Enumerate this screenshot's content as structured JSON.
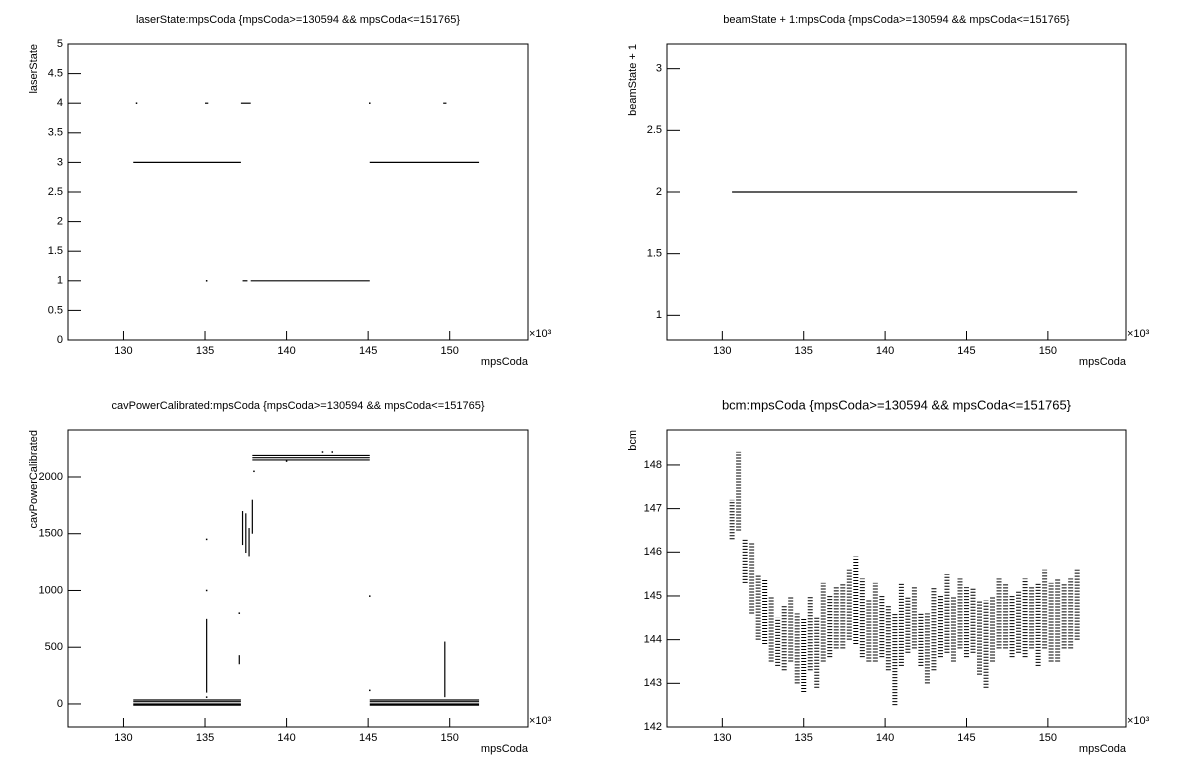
{
  "chart_data": [
    {
      "type": "line",
      "title": "laserState:mpsCoda {mpsCoda>=130594 && mpsCoda<=151765}",
      "x_label": "mpsCoda",
      "y_label": "laserState",
      "x_exponent": "×10³",
      "color": "#000000",
      "xlim": [
        126.6,
        154.8
      ],
      "xticks": [
        130,
        135,
        140,
        145,
        150
      ],
      "ylim": [
        0,
        5
      ],
      "yticks": [
        0,
        0.5,
        1,
        1.5,
        2,
        2.5,
        3,
        3.5,
        4,
        4.5,
        5
      ],
      "x": [
        130.6,
        137.2,
        null,
        145.1,
        151.8,
        null,
        137.8,
        145.1,
        null,
        137.2,
        137.8,
        null,
        135.0,
        135.2,
        null,
        130.8,
        null,
        145.1,
        null,
        149.6,
        149.8,
        null,
        135.1,
        null,
        137.3,
        137.6
      ],
      "y": [
        3,
        3,
        null,
        3,
        3,
        null,
        1,
        1,
        null,
        4,
        4,
        null,
        4,
        4,
        null,
        4,
        null,
        4,
        null,
        4,
        4,
        null,
        1,
        null,
        1,
        1
      ]
    },
    {
      "type": "line",
      "title": "beamState + 1:mpsCoda {mpsCoda>=130594 && mpsCoda<=151765}",
      "x_label": "mpsCoda",
      "y_label": "beamState + 1",
      "x_exponent": "×10³",
      "color": "#000000",
      "xlim": [
        126.6,
        154.8
      ],
      "xticks": [
        130,
        135,
        140,
        145,
        150
      ],
      "ylim": [
        0.8,
        3.2
      ],
      "yticks": [
        1,
        1.5,
        2,
        2.5,
        3
      ],
      "x": [
        130.6,
        151.8
      ],
      "y": [
        2,
        2
      ]
    },
    {
      "type": "line",
      "title": "cavPowerCalibrated:mpsCoda {mpsCoda>=130594 && mpsCoda<=151765}",
      "x_label": "mpsCoda",
      "y_label": "cavPowerCalibrated",
      "x_exponent": "×10³",
      "color": "#000000",
      "xlim": [
        126.6,
        154.8
      ],
      "xticks": [
        130,
        135,
        140,
        145,
        150
      ],
      "ylim": [
        -203,
        2414
      ],
      "yticks": [
        0,
        500,
        1000,
        1500,
        2000
      ],
      "x": [
        130.6,
        137.2,
        null,
        130.6,
        137.2,
        null,
        130.6,
        137.2,
        null,
        130.6,
        137.2,
        null,
        145.1,
        151.8,
        null,
        145.1,
        151.8,
        null,
        145.1,
        151.8,
        null,
        145.1,
        151.8,
        null,
        137.9,
        145.1,
        null,
        137.9,
        145.1,
        null,
        137.9,
        145.1,
        null,
        135.1,
        135.1,
        null,
        135.1,
        null,
        135.1,
        null,
        135.1,
        null,
        137.1,
        null,
        137.1,
        137.1,
        null,
        137.3,
        137.3,
        null,
        137.5,
        137.5,
        null,
        137.7,
        137.7,
        null,
        137.9,
        137.9,
        null,
        138.0,
        null,
        145.1,
        null,
        145.1,
        null,
        149.7,
        149.7,
        null,
        140.0,
        null,
        142.2,
        null,
        142.8
      ],
      "y": [
        35,
        35,
        null,
        20,
        20,
        null,
        0,
        0,
        null,
        -10,
        -10,
        null,
        35,
        35,
        null,
        20,
        20,
        null,
        0,
        0,
        null,
        -10,
        -10,
        null,
        2190,
        2190,
        null,
        2170,
        2170,
        null,
        2150,
        2150,
        null,
        100,
        750,
        null,
        1000,
        null,
        1450,
        null,
        60,
        null,
        800,
        null,
        350,
        430,
        null,
        1400,
        1700,
        null,
        1330,
        1680,
        null,
        1300,
        1550,
        null,
        1500,
        1800,
        null,
        2050,
        null,
        950,
        null,
        120,
        null,
        60,
        550,
        null,
        2140,
        null,
        2220,
        null,
        2220
      ]
    },
    {
      "type": "range",
      "title": "bcm:mpsCoda {mpsCoda>=130594 && mpsCoda<=151765}",
      "x_label": "mpsCoda",
      "y_label": "bcm",
      "x_exponent": "×10³",
      "color": "#000000",
      "xlim": [
        126.6,
        154.8
      ],
      "xticks": [
        130,
        135,
        140,
        145,
        150
      ],
      "ylim": [
        142,
        148.8
      ],
      "yticks": [
        142,
        143,
        144,
        145,
        146,
        147,
        148
      ],
      "x": [
        130.6,
        131.0,
        131.4,
        131.8,
        132.2,
        132.6,
        133.0,
        133.4,
        133.8,
        134.2,
        134.6,
        135.0,
        135.4,
        135.8,
        136.2,
        136.6,
        137.0,
        137.4,
        137.8,
        138.2,
        138.6,
        139.0,
        139.4,
        139.8,
        140.2,
        140.6,
        141.0,
        141.4,
        141.8,
        142.2,
        142.6,
        143.0,
        143.4,
        143.8,
        144.2,
        144.6,
        145.0,
        145.4,
        145.8,
        146.2,
        146.6,
        147.0,
        147.4,
        147.8,
        148.2,
        148.6,
        149.0,
        149.4,
        149.8,
        150.2,
        150.6,
        151.0,
        151.4,
        151.8
      ],
      "low": [
        146.3,
        146.5,
        145.3,
        144.6,
        144.0,
        143.9,
        143.5,
        143.4,
        143.3,
        143.5,
        143.0,
        142.8,
        143.3,
        142.9,
        143.5,
        143.6,
        143.8,
        143.8,
        144.0,
        143.9,
        143.6,
        143.5,
        143.5,
        143.6,
        143.3,
        142.5,
        143.4,
        143.7,
        143.8,
        143.4,
        143.0,
        143.3,
        143.6,
        143.7,
        143.5,
        143.8,
        143.6,
        143.7,
        143.2,
        142.9,
        143.5,
        143.8,
        143.8,
        143.6,
        143.7,
        143.6,
        143.8,
        143.4,
        143.8,
        143.5,
        143.5,
        143.8,
        143.8,
        144.0
      ],
      "high": [
        147.2,
        148.3,
        146.3,
        146.2,
        145.5,
        145.4,
        145.0,
        144.5,
        144.8,
        145.0,
        144.6,
        144.5,
        145.0,
        144.5,
        145.3,
        145.0,
        145.2,
        145.3,
        145.6,
        145.9,
        145.4,
        144.9,
        145.3,
        145.0,
        144.8,
        144.6,
        145.3,
        145.0,
        145.2,
        144.6,
        144.6,
        145.2,
        145.0,
        145.5,
        145.0,
        145.4,
        145.2,
        145.2,
        144.9,
        144.9,
        145.0,
        145.4,
        145.3,
        145.0,
        145.1,
        145.4,
        145.2,
        145.3,
        145.6,
        145.3,
        145.4,
        145.3,
        145.4,
        145.6
      ]
    }
  ]
}
